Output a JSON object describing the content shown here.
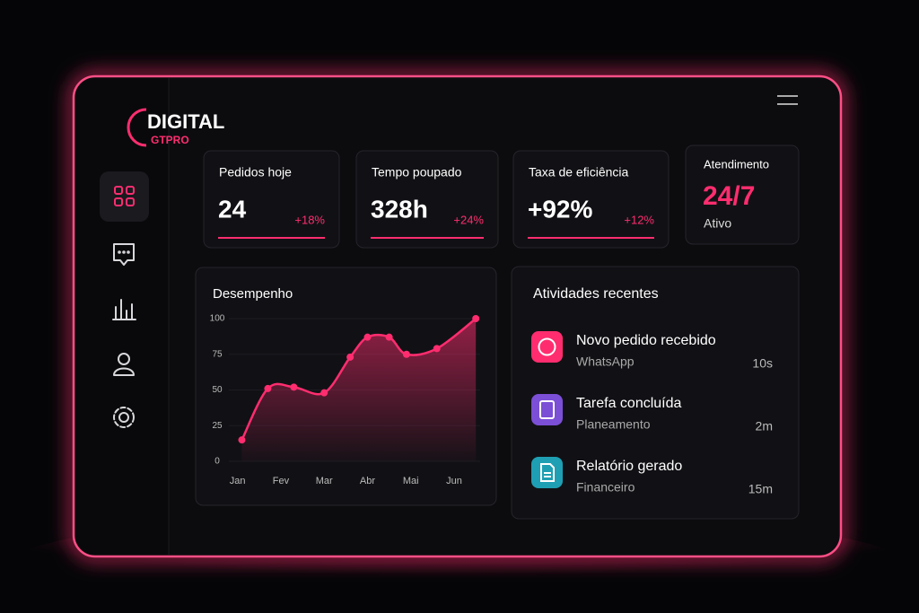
{
  "brand": {
    "name": "DIGITAL",
    "sub": "GTPRO"
  },
  "stats": [
    {
      "label": "Pedidos hoje",
      "value": "24",
      "change": "+18%"
    },
    {
      "label": "Tempo poupado",
      "value": "328h",
      "change": "+24%"
    },
    {
      "label": "Taxa de eficiência",
      "value": "+92%",
      "change": "+12%"
    }
  ],
  "support": {
    "label": "Atendimento",
    "value": "24/7",
    "status": "Ativo"
  },
  "activities": {
    "title": "Atividades recentes",
    "items": [
      {
        "title": "Novo pedido recebido",
        "source": "WhatsApp",
        "time": "10s"
      },
      {
        "title": "Tarefa concluída",
        "source": "Planeamento",
        "time": "2m"
      },
      {
        "title": "Relatório gerado",
        "source": "Financeiro",
        "time": "15m"
      }
    ]
  },
  "chart_data": {
    "type": "line",
    "title": "Desempenho",
    "color": "#ff2d6f",
    "x": [
      0.1,
      0.7,
      1.3,
      2,
      2.6,
      3,
      3.5,
      3.9,
      4.6,
      5.5
    ],
    "values": [
      15,
      51,
      52,
      48,
      73,
      87,
      87,
      75,
      79,
      100
    ],
    "xlim": [
      -0.2,
      5.6
    ],
    "ylim": [
      0,
      100
    ],
    "yticks": [
      0,
      25,
      50,
      75,
      100
    ],
    "xticks": [
      {
        "value": 0,
        "label": "Jan"
      },
      {
        "value": 1,
        "label": "Fev"
      },
      {
        "value": 2,
        "label": "Mar"
      },
      {
        "value": 3,
        "label": "Abr"
      },
      {
        "value": 4,
        "label": "Mai"
      },
      {
        "value": 5,
        "label": "Jun"
      }
    ]
  }
}
